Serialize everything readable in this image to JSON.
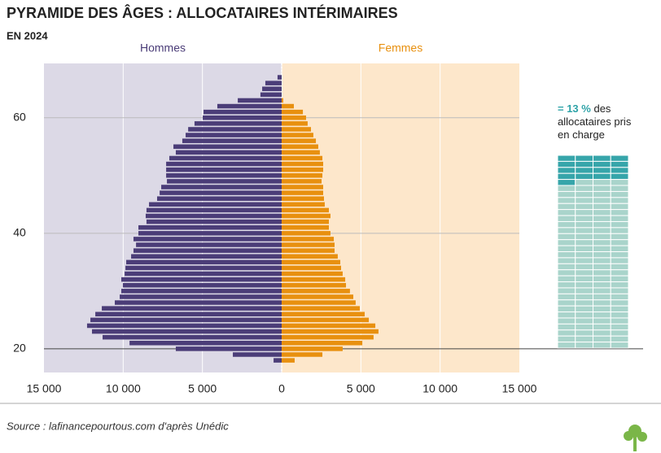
{
  "chart_data": {
    "type": "pyramid",
    "title": "PYRAMIDE DES ÂGES : ALLOCATAIRES INTÉRIMAIRES",
    "subtitle": "EN 2024",
    "source": "Source : lafinancepourtous.com d'après Unédic",
    "y": [
      18,
      19,
      20,
      21,
      22,
      23,
      24,
      25,
      26,
      27,
      28,
      29,
      30,
      31,
      32,
      33,
      34,
      35,
      36,
      37,
      38,
      39,
      40,
      41,
      42,
      43,
      44,
      45,
      46,
      47,
      48,
      49,
      50,
      51,
      52,
      53,
      54,
      55,
      56,
      57,
      58,
      59,
      60,
      61,
      62,
      63,
      64,
      65,
      66,
      67
    ],
    "series": [
      {
        "name": "Hommes",
        "color": "#4b3d78",
        "side": "left",
        "values": [
          510,
          3080,
          6680,
          9600,
          11300,
          11970,
          12280,
          12070,
          11760,
          11350,
          10530,
          10220,
          10120,
          10020,
          10120,
          9910,
          9860,
          9810,
          9500,
          9350,
          9190,
          9350,
          9040,
          9040,
          8530,
          8580,
          8530,
          8370,
          7860,
          7700,
          7600,
          7240,
          7290,
          7290,
          7290,
          7090,
          6680,
          6830,
          6270,
          6060,
          5900,
          5500,
          4980,
          4930,
          4060,
          2770,
          1340,
          1230,
          1030,
          260
        ]
      },
      {
        "name": "Femmes",
        "color": "#e8900f",
        "side": "right",
        "values": [
          820,
          2570,
          3850,
          5090,
          5800,
          6110,
          5910,
          5500,
          5240,
          4930,
          4670,
          4520,
          4310,
          4060,
          4010,
          3850,
          3750,
          3700,
          3540,
          3340,
          3340,
          3290,
          3080,
          2980,
          2980,
          3080,
          2980,
          2720,
          2670,
          2620,
          2620,
          2520,
          2570,
          2620,
          2620,
          2570,
          2410,
          2310,
          2160,
          2000,
          1850,
          1640,
          1540,
          1340,
          770,
          100,
          0,
          0,
          0,
          0
        ]
      }
    ],
    "xlim": [
      -15000,
      15000
    ],
    "xticks": [
      {
        "value": -15000,
        "label": "15 000"
      },
      {
        "value": -10000,
        "label": "10 000"
      },
      {
        "value": -5000,
        "label": "5 000"
      },
      0,
      {
        "value": 5000,
        "label": "5 000"
      },
      {
        "value": 10000,
        "label": "10 000"
      },
      {
        "value": 15000,
        "label": "15 000"
      }
    ],
    "ylim": [
      15.9,
      69.4
    ],
    "yticks": [
      20,
      40,
      60
    ],
    "annotation": {
      "value": 13,
      "label": "= 13 %",
      "text": "des allocataires pris en charge"
    }
  }
}
